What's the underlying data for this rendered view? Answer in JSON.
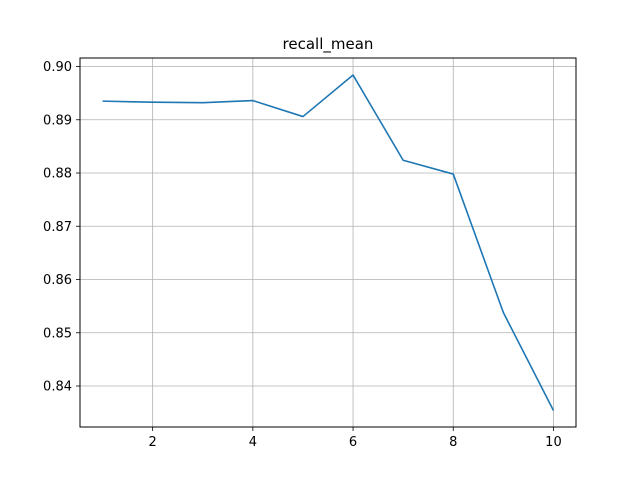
{
  "chart_data": {
    "type": "line",
    "title": "recall_mean",
    "xlabel": "",
    "ylabel": "",
    "x": [
      1,
      2,
      3,
      4,
      5,
      6,
      7,
      8,
      9,
      10
    ],
    "series": [
      {
        "values": [
          0.8935,
          0.8933,
          0.8932,
          0.8936,
          0.8906,
          0.8984,
          0.8824,
          0.8798,
          0.8538,
          0.8354
        ],
        "color": "#1f77b4"
      }
    ],
    "xlim": [
      0.55,
      10.45
    ],
    "ylim": [
      0.8323,
      0.9016
    ],
    "xticks": [
      2,
      4,
      6,
      8,
      10
    ],
    "yticks": [
      0.84,
      0.85,
      0.86,
      0.87,
      0.88,
      0.89,
      0.9
    ],
    "xtick_labels": [
      "2",
      "4",
      "6",
      "8",
      "10"
    ],
    "ytick_labels": [
      "0.84",
      "0.85",
      "0.86",
      "0.87",
      "0.88",
      "0.89",
      "0.90"
    ],
    "grid": true,
    "legend": "none"
  }
}
